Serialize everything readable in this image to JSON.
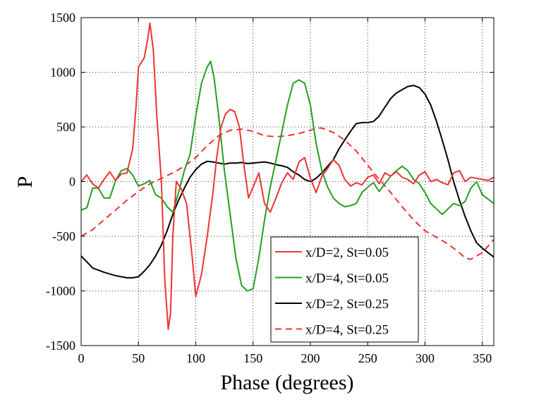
{
  "chart_data": {
    "type": "line",
    "xlabel": "Phase (degrees)",
    "ylabel": "P",
    "xlim": [
      0,
      360
    ],
    "ylim": [
      -1500,
      1500
    ],
    "xticks": [
      0,
      50,
      100,
      150,
      200,
      250,
      300,
      350
    ],
    "yticks": [
      -1500,
      -1000,
      -500,
      0,
      500,
      1000,
      1500
    ],
    "grid": true,
    "legend_position": "lower-right",
    "series": [
      {
        "name": "x/D=2, St=0.05",
        "color": "#ee3333",
        "dash": "solid",
        "x": [
          0,
          5,
          10,
          15,
          20,
          25,
          30,
          35,
          40,
          45,
          48,
          50,
          55,
          58,
          60,
          63,
          66,
          70,
          73,
          76,
          78,
          80,
          83,
          87,
          92,
          97,
          100,
          105,
          110,
          115,
          118,
          122,
          126,
          130,
          134,
          138,
          142,
          146,
          150,
          155,
          160,
          165,
          170,
          175,
          180,
          185,
          190,
          195,
          200,
          205,
          210,
          215,
          220,
          225,
          230,
          235,
          240,
          245,
          250,
          255,
          260,
          265,
          270,
          275,
          280,
          285,
          290,
          295,
          300,
          305,
          310,
          315,
          320,
          325,
          330,
          335,
          340,
          345,
          350,
          355,
          360
        ],
        "values": [
          0,
          60,
          -20,
          -60,
          20,
          90,
          10,
          70,
          80,
          300,
          700,
          1050,
          1130,
          1300,
          1450,
          1200,
          600,
          0,
          -900,
          -1350,
          -1200,
          -500,
          0,
          -60,
          -200,
          -700,
          -1050,
          -850,
          -500,
          -100,
          200,
          500,
          620,
          660,
          640,
          500,
          150,
          -150,
          -50,
          80,
          -200,
          -280,
          -150,
          -10,
          80,
          20,
          180,
          220,
          30,
          -100,
          50,
          120,
          200,
          150,
          20,
          -40,
          -10,
          -30,
          40,
          60,
          -20,
          80,
          50,
          90,
          40,
          20,
          -20,
          60,
          90,
          0,
          20,
          -10,
          -30,
          80,
          100,
          0,
          40,
          30,
          20,
          10,
          40
        ]
      },
      {
        "name": "x/D=4, St=0.05",
        "color": "#22a022",
        "dash": "solid",
        "x": [
          0,
          5,
          10,
          15,
          20,
          25,
          30,
          35,
          40,
          45,
          50,
          55,
          60,
          65,
          70,
          75,
          80,
          85,
          90,
          95,
          100,
          105,
          110,
          113,
          116,
          120,
          125,
          130,
          135,
          140,
          145,
          150,
          155,
          160,
          165,
          170,
          175,
          180,
          185,
          190,
          195,
          200,
          205,
          210,
          215,
          220,
          225,
          230,
          235,
          240,
          245,
          250,
          255,
          260,
          265,
          270,
          275,
          280,
          285,
          290,
          295,
          300,
          305,
          310,
          315,
          320,
          325,
          330,
          335,
          340,
          345,
          350,
          355,
          360
        ],
        "values": [
          -260,
          -240,
          -60,
          -60,
          -150,
          -150,
          10,
          100,
          120,
          60,
          -40,
          -20,
          10,
          -120,
          -150,
          -230,
          -280,
          -100,
          100,
          250,
          600,
          900,
          1050,
          1100,
          950,
          600,
          100,
          -300,
          -700,
          -950,
          -1000,
          -980,
          -700,
          -350,
          -50,
          200,
          450,
          700,
          900,
          930,
          900,
          700,
          350,
          100,
          -50,
          -150,
          -200,
          -230,
          -220,
          -200,
          -100,
          -50,
          -10,
          -90,
          -20,
          50,
          100,
          140,
          100,
          20,
          -20,
          -100,
          -200,
          -250,
          -300,
          -250,
          -200,
          -220,
          -180,
          -60,
          0,
          -120,
          -160,
          -200
        ]
      },
      {
        "name": "x/D=2, St=0.25",
        "color": "#000000",
        "dash": "solid",
        "x": [
          0,
          10,
          20,
          30,
          40,
          45,
          50,
          55,
          60,
          65,
          70,
          75,
          80,
          85,
          90,
          95,
          100,
          105,
          110,
          115,
          120,
          125,
          130,
          135,
          140,
          145,
          150,
          155,
          160,
          165,
          170,
          175,
          180,
          185,
          190,
          195,
          200,
          205,
          210,
          215,
          220,
          225,
          230,
          235,
          240,
          245,
          250,
          255,
          260,
          265,
          270,
          275,
          280,
          285,
          290,
          295,
          300,
          305,
          310,
          315,
          320,
          325,
          330,
          335,
          340,
          345,
          350,
          355,
          360
        ],
        "values": [
          -680,
          -790,
          -830,
          -860,
          -880,
          -880,
          -870,
          -820,
          -760,
          -680,
          -580,
          -450,
          -300,
          -170,
          -60,
          40,
          110,
          160,
          185,
          180,
          170,
          160,
          170,
          170,
          175,
          165,
          170,
          175,
          180,
          170,
          155,
          145,
          130,
          90,
          60,
          20,
          0,
          30,
          80,
          140,
          200,
          300,
          380,
          460,
          530,
          540,
          540,
          550,
          600,
          680,
          760,
          810,
          840,
          870,
          880,
          860,
          800,
          700,
          550,
          380,
          200,
          0,
          -170,
          -320,
          -450,
          -560,
          -610,
          -650,
          -690
        ]
      },
      {
        "name": "x/D=4, St=0.25",
        "color": "#ee3333",
        "dash": "dashed",
        "x": [
          0,
          10,
          20,
          30,
          40,
          50,
          60,
          70,
          80,
          90,
          100,
          110,
          120,
          130,
          140,
          150,
          160,
          170,
          180,
          190,
          200,
          205,
          210,
          220,
          230,
          240,
          250,
          260,
          270,
          280,
          290,
          300,
          310,
          320,
          330,
          335,
          340,
          350,
          360
        ],
        "values": [
          -500,
          -440,
          -350,
          -260,
          -170,
          -90,
          -20,
          30,
          80,
          140,
          220,
          330,
          420,
          470,
          480,
          460,
          420,
          410,
          420,
          440,
          470,
          490,
          490,
          450,
          380,
          280,
          150,
          20,
          -100,
          -230,
          -350,
          -450,
          -510,
          -570,
          -650,
          -700,
          -710,
          -650,
          -530
        ]
      }
    ]
  }
}
